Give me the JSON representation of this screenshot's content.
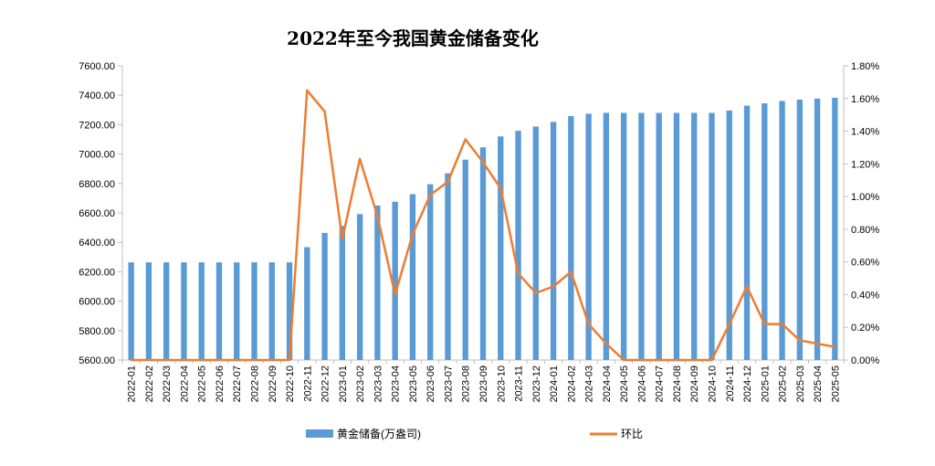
{
  "chart_data": {
    "type": "bar",
    "title": "2022年至今我国黄金储备变化",
    "categories": [
      "2022-01",
      "2022-02",
      "2022-03",
      "2022-04",
      "2022-05",
      "2022-06",
      "2022-07",
      "2022-08",
      "2022-09",
      "2022-10",
      "2022-11",
      "2022-12",
      "2023-01",
      "2023-02",
      "2023-03",
      "2023-04",
      "2023-05",
      "2023-06",
      "2023-07",
      "2023-08",
      "2023-09",
      "2023-10",
      "2023-11",
      "2023-12",
      "2024-01",
      "2024-02",
      "2024-03",
      "2024-04",
      "2024-05",
      "2024-06",
      "2024-07",
      "2024-08",
      "2024-09",
      "2024-10",
      "2024-11",
      "2024-12",
      "2025-01",
      "2025-02",
      "2025-03",
      "2025-04",
      "2025-05"
    ],
    "series": [
      {
        "name": "黄金储备(万盎司)",
        "type": "bar",
        "axis": "left",
        "color": "#5B9BD5",
        "values": [
          6264,
          6264,
          6264,
          6264,
          6264,
          6264,
          6264,
          6264,
          6264,
          6264,
          6367,
          6464,
          6512,
          6592,
          6650,
          6676,
          6727,
          6795,
          6869,
          6962,
          7046,
          7120,
          7158,
          7187,
          7219,
          7258,
          7274,
          7280,
          7280,
          7280,
          7280,
          7280,
          7280,
          7280,
          7296,
          7329,
          7345,
          7361,
          7370,
          7377,
          7383
        ]
      },
      {
        "name": "环比",
        "type": "line",
        "axis": "right",
        "color": "#ED7D31",
        "values": [
          0,
          0,
          0,
          0,
          0,
          0,
          0,
          0,
          0,
          0,
          1.65,
          1.52,
          0.74,
          1.23,
          0.88,
          0.4,
          0.77,
          1.01,
          1.09,
          1.35,
          1.21,
          1.05,
          0.53,
          0.41,
          0.45,
          0.54,
          0.22,
          0.1,
          0,
          0,
          0,
          0,
          0,
          0,
          0.22,
          0.45,
          0.22,
          0.22,
          0.12,
          0.1,
          0.08
        ]
      }
    ],
    "y_left": {
      "min": 5600,
      "max": 7600,
      "ticks": [
        "5600.00",
        "5800.00",
        "6000.00",
        "6200.00",
        "6400.00",
        "6600.00",
        "6800.00",
        "7000.00",
        "7200.00",
        "7400.00",
        "7600.00"
      ]
    },
    "y_right": {
      "min": 0,
      "max": 1.8,
      "ticks": [
        "0.00%",
        "0.20%",
        "0.40%",
        "0.60%",
        "0.80%",
        "1.00%",
        "1.20%",
        "1.40%",
        "1.60%",
        "1.80%"
      ]
    },
    "grid": false,
    "legend": "bottom"
  }
}
